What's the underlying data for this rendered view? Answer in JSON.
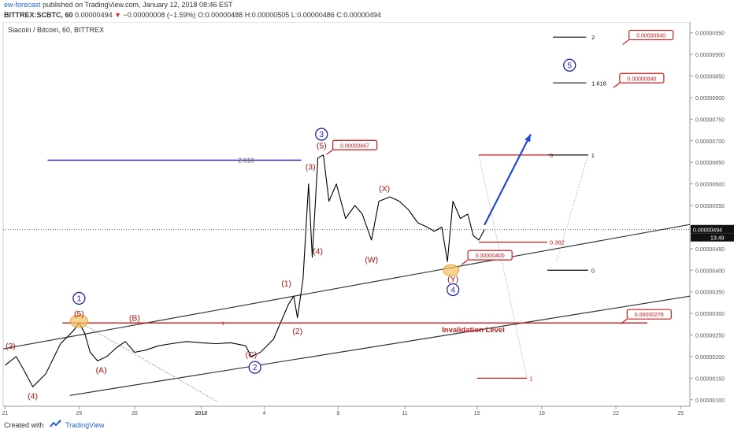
{
  "header": {
    "author": "ew-forecast",
    "published": "published on TradingView.com, January 12, 2018 08:46 EST",
    "symbol": "BITTREX:SCBTC, 60",
    "price": "0.00000494",
    "change": "−0.00000008 (−1.59%)",
    "ohlc": "O:0.00000488 H:0.00000505 L:0.00000486 C:0.00000494"
  },
  "footer": {
    "created": "Created with",
    "brand": "TradingView"
  },
  "colors": {
    "blue": "#2222aa",
    "red": "#cc1a1a",
    "channel": "#333333",
    "up": "#000000",
    "arrow": "#1e4bd2",
    "highlight": "#f2c163"
  },
  "chart_data": {
    "type": "candlestick",
    "title": "Siacoin / Bitcoin, 60, BITTREX",
    "ylim": [
      8.5e-07,
      9.75e-06
    ],
    "y_ticks": [
      "0.00000950",
      "0.00000900",
      "0.00000850",
      "0.00000800",
      "0.00000750",
      "0.00000700",
      "0.00000650",
      "0.00000600",
      "0.00000550",
      "0.00000500",
      "0.00000450",
      "0.00000400",
      "0.00000350",
      "0.00000300",
      "0.00000250",
      "0.00000200",
      "0.00000150",
      "0.00000100"
    ],
    "x_ticks": [
      "21",
      "25",
      "28",
      "2018",
      "4",
      "8",
      "11",
      "15",
      "18",
      "22",
      "25"
    ],
    "last_price": "0.00000494",
    "countdown": "13:49",
    "price_path": [
      [
        21,
        1.8e-06
      ],
      [
        21.6,
        2e-06
      ],
      [
        22,
        1.7e-06
      ],
      [
        22.5,
        1.3e-06
      ],
      [
        23.2,
        1.6e-06
      ],
      [
        24,
        2.3e-06
      ],
      [
        24.7,
        2.6e-06
      ],
      [
        25,
        2.78e-06
      ],
      [
        25.3,
        2.55e-06
      ],
      [
        25.6,
        2.1e-06
      ],
      [
        26,
        1.9e-06
      ],
      [
        26.5,
        2e-06
      ],
      [
        27,
        2.2e-06
      ],
      [
        27.5,
        2.35e-06
      ],
      [
        27.8,
        2.2e-06
      ],
      [
        28,
        2.1e-06
      ],
      [
        28.6,
        2.15e-06
      ],
      [
        29.3,
        2.25e-06
      ],
      [
        30,
        2.3e-06
      ],
      [
        30.8,
        2.35e-06
      ],
      [
        31.6,
        2.32e-06
      ],
      [
        32.4,
        2.3e-06
      ],
      [
        33.2,
        2.32e-06
      ],
      [
        34,
        2.25e-06
      ],
      [
        34.3,
        2e-06
      ],
      [
        34.8,
        2.1e-06
      ],
      [
        35.5,
        2.4e-06
      ],
      [
        36,
        2.9e-06
      ],
      [
        36.3,
        3.2e-06
      ],
      [
        36.6,
        3.4e-06
      ],
      [
        36.8,
        2.9e-06
      ],
      [
        37.1,
        3.8e-06
      ],
      [
        37.4,
        6e-06
      ],
      [
        37.6,
        4.3e-06
      ],
      [
        37.9,
        6.6e-06
      ],
      [
        38.2,
        6.67e-06
      ],
      [
        38.5,
        5.6e-06
      ],
      [
        38.9,
        6e-06
      ],
      [
        39.4,
        5.2e-06
      ],
      [
        39.9,
        5.5e-06
      ],
      [
        40.3,
        5.3e-06
      ],
      [
        40.8,
        4.7e-06
      ],
      [
        41.2,
        5.6e-06
      ],
      [
        41.8,
        5.7e-06
      ],
      [
        42.3,
        5.6e-06
      ],
      [
        42.8,
        5.4e-06
      ],
      [
        43.3,
        5.1e-06
      ],
      [
        43.8,
        5e-06
      ],
      [
        44.2,
        4.9e-06
      ],
      [
        44.6,
        5e-06
      ],
      [
        44.9,
        4.2e-06
      ],
      [
        45.2,
        5.6e-06
      ],
      [
        45.6,
        5.2e-06
      ],
      [
        46,
        5.3e-06
      ],
      [
        46.3,
        4.8e-06
      ],
      [
        46.6,
        4.7e-06
      ],
      [
        46.9,
        4.94e-06
      ]
    ],
    "annotations": {
      "blue_circles": [
        {
          "label": "1",
          "x": 25,
          "y": 3.35e-06
        },
        {
          "label": "2",
          "x": 34.5,
          "y": 1.75e-06
        },
        {
          "label": "3",
          "x": 38.1,
          "y": 7.15e-06
        },
        {
          "label": "4",
          "x": 45.2,
          "y": 3.55e-06
        },
        {
          "label": "5",
          "x": 51.5,
          "y": 8.75e-06
        }
      ],
      "red_labels": [
        {
          "label": "(3)",
          "x": 21.3,
          "y": 2.25e-06
        },
        {
          "label": "(4)",
          "x": 22.5,
          "y": 1.1e-06
        },
        {
          "label": "(5)",
          "x": 25,
          "y": 3e-06
        },
        {
          "label": "(A)",
          "x": 26.2,
          "y": 1.7e-06
        },
        {
          "label": "(B)",
          "x": 28,
          "y": 2.9e-06
        },
        {
          "label": "(C)",
          "x": 34.3,
          "y": 2.05e-06
        },
        {
          "label": "(1)",
          "x": 36.2,
          "y": 3.7e-06
        },
        {
          "label": "(2)",
          "x": 36.8,
          "y": 2.6e-06
        },
        {
          "label": "(3)",
          "x": 37.5,
          "y": 6.4e-06
        },
        {
          "label": "(4)",
          "x": 37.9,
          "y": 4.45e-06
        },
        {
          "label": "(5)",
          "x": 38.1,
          "y": 6.9e-06
        },
        {
          "label": "(X)",
          "x": 41.5,
          "y": 5.9e-06
        },
        {
          "label": "(W)",
          "x": 40.8,
          "y": 4.25e-06
        },
        {
          "label": "(Y)",
          "x": 45.2,
          "y": 3.8e-06
        }
      ],
      "price_boxes": [
        {
          "label": "0.00000667",
          "x": 39.9,
          "y": 6.9e-06
        },
        {
          "label": "0.00000400",
          "x": 47.2,
          "y": 4.35e-06
        },
        {
          "label": "0.00000278",
          "x": 55.8,
          "y": 2.98e-06
        },
        {
          "label": "0.00000840",
          "x": 55.4,
          "y": 8.45e-06
        },
        {
          "label": "0.00000940",
          "x": 55.9,
          "y": 9.45e-06
        }
      ],
      "fib_top": [
        {
          "label": "2",
          "value": "0.00000940"
        },
        {
          "label": "1.618",
          "value": "0.00000834"
        }
      ],
      "fib_right": [
        {
          "label": "1",
          "value": "0.00000667"
        },
        {
          "label": "0",
          "value": "0.00000400"
        }
      ],
      "fib_retrace": [
        {
          "label": "0",
          "value": "0.00000667"
        },
        {
          "label": "0.382",
          "value": "0.00000465"
        },
        {
          "label": "1",
          "value": "0.00000150"
        }
      ],
      "fib_extension_label": "2.618",
      "invalidation_label": "Invalidation Level",
      "invalidation_marker": "1"
    }
  }
}
